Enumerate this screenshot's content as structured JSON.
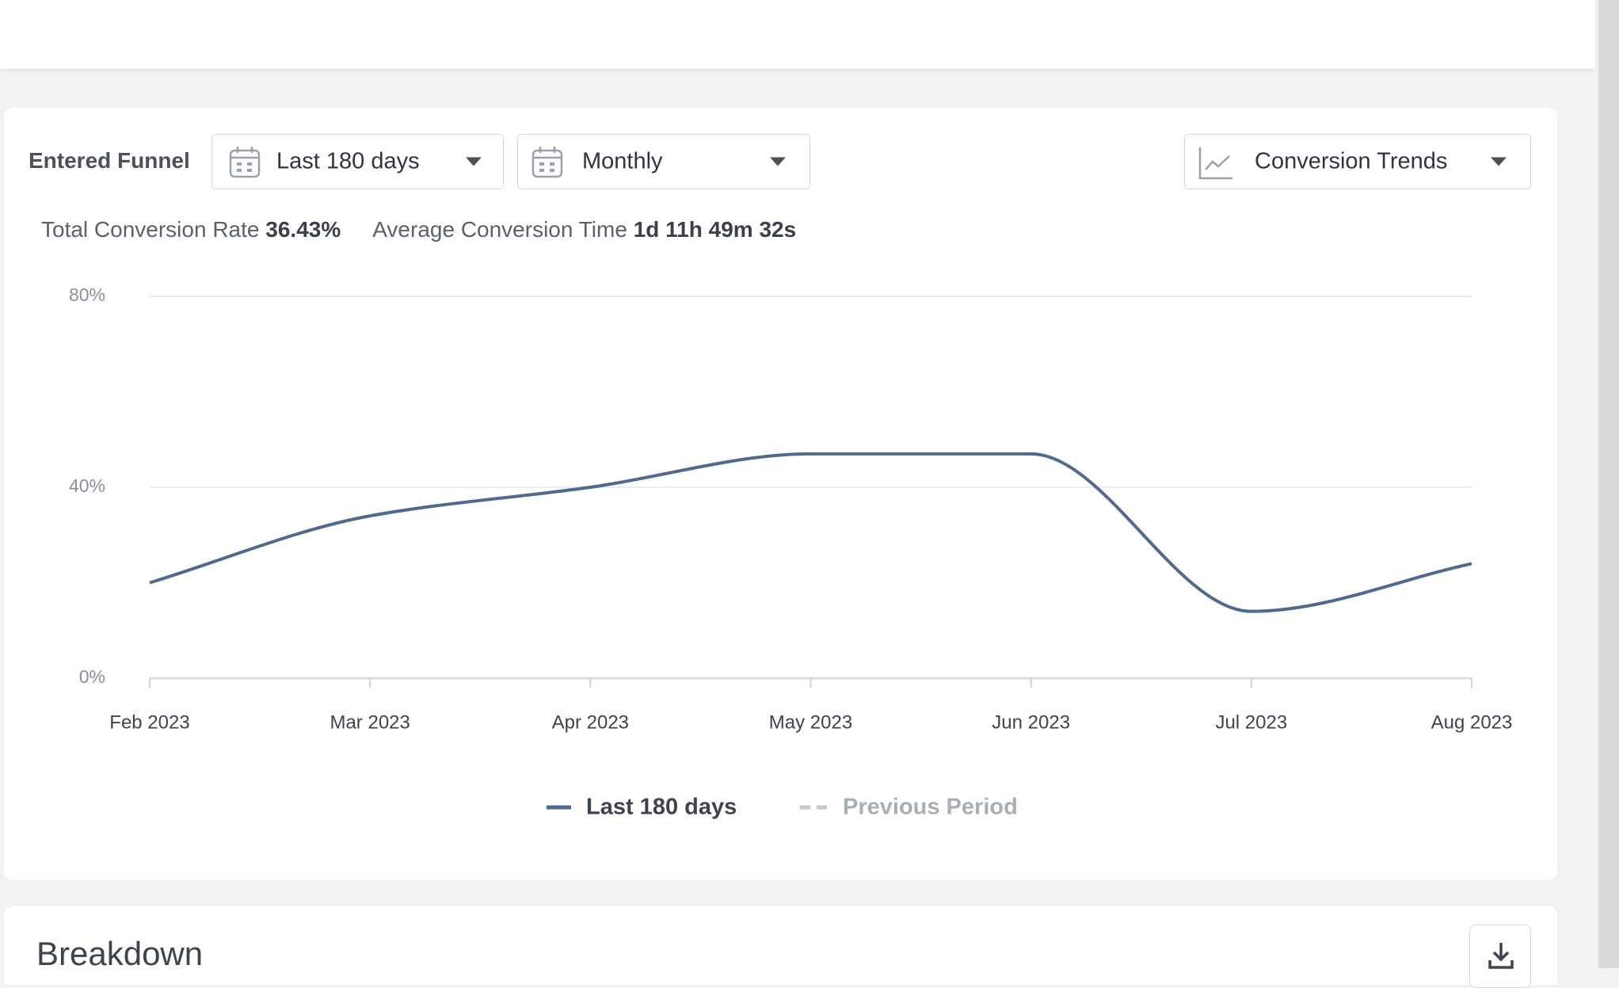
{
  "toolbar": {
    "label": "Entered Funnel",
    "range": "Last 180 days",
    "interval": "Monthly",
    "view": "Conversion Trends"
  },
  "stats": {
    "rate_label": "Total Conversion Rate",
    "rate_value": "36.43%",
    "time_label": "Average Conversion Time",
    "time_value": "1d 11h 49m 32s"
  },
  "chart_data": {
    "type": "line",
    "categories": [
      "Feb 2023",
      "Mar 2023",
      "Apr 2023",
      "May 2023",
      "Jun 2023",
      "Jul 2023",
      "Aug 2023"
    ],
    "series": [
      {
        "name": "Last 180 days",
        "color": "#4f6a8f",
        "values": [
          20,
          34,
          40,
          47,
          47,
          14,
          24
        ]
      },
      {
        "name": "Previous Period",
        "color": "#c3c8cf",
        "values": [
          null,
          null,
          null,
          null,
          null,
          null,
          null
        ]
      }
    ],
    "ylim": [
      0,
      80
    ],
    "yticks": [
      {
        "value": 0,
        "label": "0%"
      },
      {
        "value": 40,
        "label": "40%"
      },
      {
        "value": 80,
        "label": "80%"
      }
    ],
    "grid": true
  },
  "breakdown": {
    "title": "Breakdown"
  }
}
